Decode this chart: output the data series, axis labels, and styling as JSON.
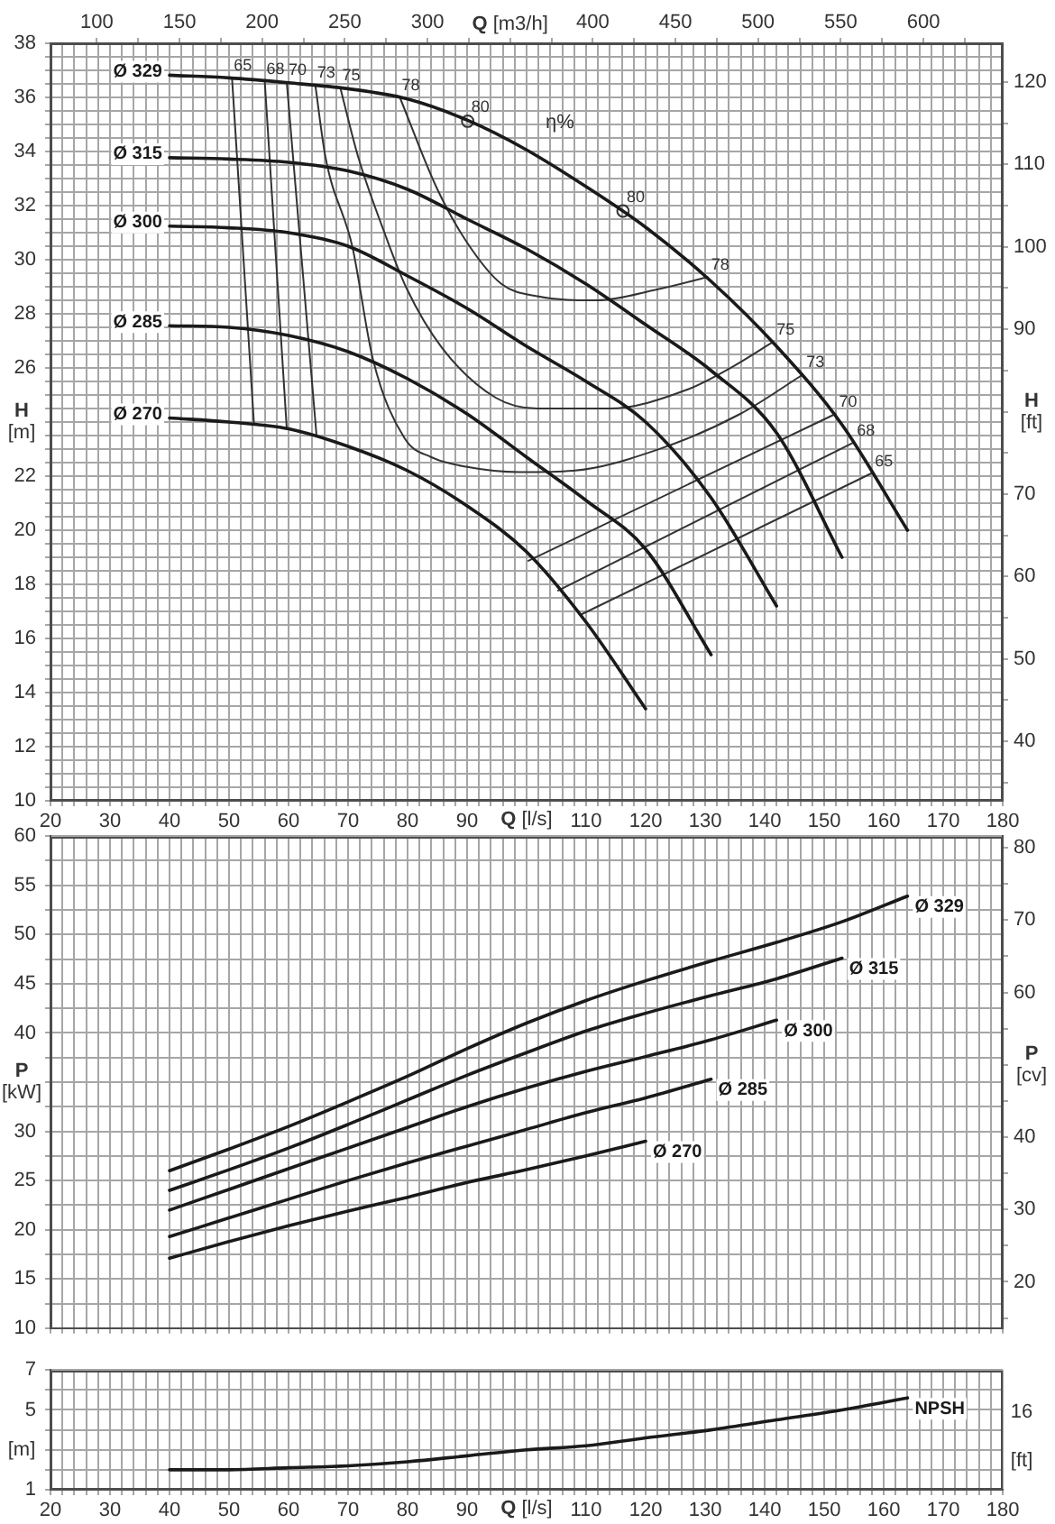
{
  "chart_data": [
    {
      "type": "line",
      "xlabel": "Q [l/s]",
      "x2label": "Q [m3/h]",
      "ylabel": "H [m]",
      "y2label": "H [ft]",
      "grid": true,
      "xlim": [
        20,
        180
      ],
      "ylim": [
        10,
        38
      ],
      "x2lim": [
        72,
        648
      ],
      "y2lim": [
        32.8,
        124.7
      ],
      "xticks": [
        20,
        {
          "value": 22,
          "label": null
        },
        {
          "value": 24,
          "label": null
        },
        {
          "value": 26,
          "label": null
        },
        {
          "value": 28,
          "label": null
        },
        30,
        {
          "value": 32,
          "label": null
        },
        {
          "value": 34,
          "label": null
        },
        {
          "value": 36,
          "label": null
        },
        {
          "value": 38,
          "label": null
        },
        40,
        {
          "value": 42,
          "label": null
        },
        {
          "value": 44,
          "label": null
        },
        {
          "value": 46,
          "label": null
        },
        {
          "value": 48,
          "label": null
        },
        50,
        {
          "value": 52,
          "label": null
        },
        {
          "value": 54,
          "label": null
        },
        {
          "value": 56,
          "label": null
        },
        {
          "value": 58,
          "label": null
        },
        60,
        {
          "value": 62,
          "label": null
        },
        {
          "value": 64,
          "label": null
        },
        {
          "value": 66,
          "label": null
        },
        {
          "value": 68,
          "label": null
        },
        70,
        {
          "value": 72,
          "label": null
        },
        {
          "value": 74,
          "label": null
        },
        {
          "value": 76,
          "label": null
        },
        {
          "value": 78,
          "label": null
        },
        80,
        {
          "value": 82,
          "label": null
        },
        {
          "value": 84,
          "label": null
        },
        {
          "value": 86,
          "label": null
        },
        {
          "value": 88,
          "label": null
        },
        90,
        {
          "value": 92,
          "label": null
        },
        {
          "value": 94,
          "label": null
        },
        {
          "value": 96,
          "label": null
        },
        {
          "value": 98,
          "label": null
        },
        {
          "value": 100,
          "label": null
        },
        {
          "value": 102,
          "label": null
        },
        {
          "value": 104,
          "label": null
        },
        {
          "value": 106,
          "label": null
        },
        {
          "value": 108,
          "label": null
        },
        110,
        {
          "value": 112,
          "label": null
        },
        {
          "value": 114,
          "label": null
        },
        {
          "value": 116,
          "label": null
        },
        {
          "value": 118,
          "label": null
        },
        120,
        {
          "value": 122,
          "label": null
        },
        {
          "value": 124,
          "label": null
        },
        {
          "value": 126,
          "label": null
        },
        {
          "value": 128,
          "label": null
        },
        130,
        {
          "value": 132,
          "label": null
        },
        {
          "value": 134,
          "label": null
        },
        {
          "value": 136,
          "label": null
        },
        {
          "value": 138,
          "label": null
        },
        140,
        {
          "value": 142,
          "label": null
        },
        {
          "value": 144,
          "label": null
        },
        {
          "value": 146,
          "label": null
        },
        {
          "value": 148,
          "label": null
        },
        150,
        {
          "value": 152,
          "label": null
        },
        {
          "value": 154,
          "label": null
        },
        {
          "value": 156,
          "label": null
        },
        {
          "value": 158,
          "label": null
        },
        160,
        {
          "value": 162,
          "label": null
        },
        {
          "value": 164,
          "label": null
        },
        {
          "value": 166,
          "label": null
        },
        {
          "value": 168,
          "label": null
        },
        170,
        {
          "value": 172,
          "label": null
        },
        {
          "value": 174,
          "label": null
        },
        {
          "value": 176,
          "label": null
        },
        {
          "value": 178,
          "label": null
        },
        180
      ],
      "yticks": [
        10,
        {
          "value": 10.5,
          "label": null
        },
        {
          "value": 11,
          "label": null
        },
        {
          "value": 11.5,
          "label": null
        },
        12,
        {
          "value": 12.5,
          "label": null
        },
        {
          "value": 13,
          "label": null
        },
        {
          "value": 13.5,
          "label": null
        },
        14,
        {
          "value": 14.5,
          "label": null
        },
        {
          "value": 15,
          "label": null
        },
        {
          "value": 15.5,
          "label": null
        },
        16,
        {
          "value": 16.5,
          "label": null
        },
        {
          "value": 17,
          "label": null
        },
        {
          "value": 17.5,
          "label": null
        },
        18,
        {
          "value": 18.5,
          "label": null
        },
        {
          "value": 19,
          "label": null
        },
        {
          "value": 19.5,
          "label": null
        },
        20,
        {
          "value": 20.5,
          "label": null
        },
        {
          "value": 21,
          "label": null
        },
        {
          "value": 21.5,
          "label": null
        },
        22,
        {
          "value": 22.5,
          "label": null
        },
        {
          "value": 23,
          "label": null
        },
        {
          "value": 23.5,
          "label": null
        },
        {
          "value": 24,
          "label": null
        },
        {
          "value": 24.5,
          "label": null
        },
        {
          "value": 25,
          "label": null
        },
        {
          "value": 25.5,
          "label": null
        },
        26,
        {
          "value": 26.5,
          "label": null
        },
        {
          "value": 27,
          "label": null
        },
        {
          "value": 27.5,
          "label": null
        },
        28,
        {
          "value": 28.5,
          "label": null
        },
        {
          "value": 29,
          "label": null
        },
        {
          "value": 29.5,
          "label": null
        },
        30,
        {
          "value": 30.5,
          "label": null
        },
        {
          "value": 31,
          "label": null
        },
        {
          "value": 31.5,
          "label": null
        },
        32,
        {
          "value": 32.5,
          "label": null
        },
        {
          "value": 33,
          "label": null
        },
        {
          "value": 33.5,
          "label": null
        },
        34,
        {
          "value": 34.5,
          "label": null
        },
        {
          "value": 35,
          "label": null
        },
        {
          "value": 35.5,
          "label": null
        },
        36,
        {
          "value": 36.5,
          "label": null
        },
        {
          "value": 37,
          "label": null
        },
        {
          "value": 37.5,
          "label": null
        },
        38
      ],
      "x2ticks": [
        100,
        {
          "value": 125,
          "label": null
        },
        150,
        {
          "value": 175,
          "label": null
        },
        200,
        {
          "value": 225,
          "label": null
        },
        250,
        {
          "value": 275,
          "label": null
        },
        300,
        {
          "value": 325,
          "label": null
        },
        {
          "value": 350,
          "label": null
        },
        {
          "value": 375,
          "label": null
        },
        400,
        {
          "value": 425,
          "label": null
        },
        450,
        {
          "value": 475,
          "label": null
        },
        500,
        {
          "value": 525,
          "label": null
        },
        550,
        {
          "value": 575,
          "label": null
        },
        600,
        {
          "value": 625,
          "label": null
        }
      ],
      "y2ticks": [
        {
          "value": 35,
          "label": null
        },
        40,
        {
          "value": 45,
          "label": null
        },
        50,
        {
          "value": 55,
          "label": null
        },
        60,
        {
          "value": 65,
          "label": null
        },
        70,
        {
          "value": 75,
          "label": null
        },
        {
          "value": 80,
          "label": null
        },
        {
          "value": 85,
          "label": null
        },
        90,
        {
          "value": 95,
          "label": null
        },
        100,
        {
          "value": 105,
          "label": null
        },
        110,
        {
          "value": 115,
          "label": null
        },
        120
      ],
      "x": [
        40,
        50,
        60,
        70,
        80,
        90,
        100,
        110,
        120,
        131,
        142,
        153,
        164
      ],
      "series": [
        {
          "name": "Ø 329",
          "color": "#1a1a1a",
          "values": [
            36.82,
            36.72,
            36.54,
            36.32,
            35.94,
            35.16,
            34.06,
            32.7,
            31.2,
            29.2,
            26.8,
            23.9,
            20.0
          ]
        },
        {
          "name": "Ø 315",
          "color": "#1a1a1a",
          "values": [
            33.77,
            33.72,
            33.6,
            33.28,
            32.6,
            31.5,
            30.4,
            29.1,
            27.6,
            25.9,
            23.6,
            19.0,
            null
          ]
        },
        {
          "name": "Ø 300",
          "color": "#1a1a1a",
          "values": [
            31.24,
            31.18,
            31.0,
            30.5,
            29.4,
            28.2,
            26.8,
            25.5,
            24.0,
            21.2,
            17.2,
            null,
            null
          ]
        },
        {
          "name": "Ø 285",
          "color": "#1a1a1a",
          "values": [
            27.56,
            27.5,
            27.2,
            26.6,
            25.6,
            24.3,
            22.7,
            21.1,
            19.3,
            15.4,
            null,
            null,
            null
          ]
        },
        {
          "name": "Ø 270",
          "color": "#1a1a1a",
          "values": [
            24.15,
            24.0,
            23.75,
            23.1,
            22.2,
            20.9,
            19.2,
            16.6,
            13.4,
            null,
            null,
            null,
            null
          ]
        },
        {
          "name": "65",
          "type": "line",
          "color": "#333333",
          "x": [
            50.5,
            54.2,
            null,
            109.3,
            157.9
          ],
          "values": [
            36.72,
            23.9,
            null,
            16.9,
            22.1
          ]
        },
        {
          "name": "68",
          "type": "line",
          "color": "#333333",
          "x": [
            56,
            59.7,
            null,
            105.3,
            154.9
          ],
          "values": [
            36.6,
            23.75,
            null,
            17.77,
            23.24
          ]
        },
        {
          "name": "70",
          "type": "line",
          "color": "#333333",
          "x": [
            59.7,
            64.7,
            null,
            100.3,
            151.9
          ],
          "values": [
            36.55,
            23.5,
            null,
            18.87,
            24.3
          ]
        },
        {
          "name": "73",
          "type": "line",
          "color": "#333333",
          "x": [
            64.5,
            66.2,
            70.7,
            74.2,
            79.5,
            84,
            89.8,
            98.8,
            107.8,
            121.9,
            135.9,
            146.4
          ],
          "values": [
            36.45,
            33.8,
            30.5,
            26.3,
            23.4,
            22.7,
            22.35,
            22.15,
            22.2,
            22.97,
            24.3,
            25.75
          ]
        },
        {
          "name": "75",
          "type": "line",
          "color": "#333333",
          "x": [
            68.7,
            71.7,
            76.2,
            79.8,
            85.8,
            94.8,
            101.8,
            113.8,
            126.9,
            134.9,
            141.4
          ],
          "values": [
            36.35,
            33.8,
            30.95,
            28.96,
            26.74,
            24.9,
            24.5,
            24.5,
            25.19,
            26.08,
            26.96
          ]
        },
        {
          "name": "78",
          "type": "line",
          "color": "#333333",
          "x": [
            78.7,
            84.8,
            89.8,
            95.8,
            101.8,
            111.8,
            121.9,
            130.4
          ],
          "values": [
            36.0,
            32.7,
            30.7,
            29.1,
            28.65,
            28.5,
            28.9,
            29.36
          ]
        },
        {
          "name": "80",
          "type": "scatter",
          "marker": "circle",
          "color": "#333333",
          "x": [
            90.1,
            116.2
          ],
          "values": [
            35.12,
            31.8
          ]
        }
      ],
      "annotations": [
        "η%"
      ]
    },
    {
      "type": "line",
      "ylabel": "P [kW]",
      "y2label": "P [cv]",
      "grid": true,
      "tick_labels": "y",
      "xlim": [
        20,
        180
      ],
      "ylim": [
        10,
        60
      ],
      "y2lim": [
        13.6,
        81.6
      ],
      "xticks": [
        20,
        22,
        24,
        26,
        28,
        30,
        32,
        34,
        36,
        38,
        40,
        42,
        44,
        46,
        48,
        50,
        52,
        54,
        56,
        58,
        60,
        62,
        64,
        66,
        68,
        70,
        72,
        74,
        76,
        78,
        80,
        82,
        84,
        86,
        88,
        90,
        92,
        94,
        96,
        98,
        100,
        102,
        104,
        106,
        108,
        110,
        112,
        114,
        116,
        118,
        120,
        122,
        124,
        126,
        128,
        130,
        132,
        134,
        136,
        138,
        140,
        142,
        144,
        146,
        148,
        150,
        152,
        154,
        156,
        158,
        160,
        162,
        164,
        166,
        168,
        170,
        172,
        174,
        176,
        178,
        180
      ],
      "yticks": [
        10,
        {
          "value": 12.5,
          "label": null
        },
        15,
        {
          "value": 17.5,
          "label": null
        },
        20,
        {
          "value": 22.5,
          "label": null
        },
        25,
        {
          "value": 27.5,
          "label": null
        },
        30,
        {
          "value": 32.5,
          "label": null
        },
        {
          "value": 35,
          "label": null
        },
        {
          "value": 37.5,
          "label": null
        },
        40,
        {
          "value": 42.5,
          "label": null
        },
        45,
        {
          "value": 47.5,
          "label": null
        },
        50,
        {
          "value": 52.5,
          "label": null
        },
        55,
        {
          "value": 57.5,
          "label": null
        },
        60
      ],
      "y2ticks": [
        {
          "value": 15,
          "label": null
        },
        20,
        {
          "value": 25,
          "label": null
        },
        30,
        {
          "value": 35,
          "label": null
        },
        40,
        {
          "value": 45,
          "label": null
        },
        {
          "value": 50,
          "label": null
        },
        {
          "value": 55,
          "label": null
        },
        60,
        {
          "value": 65,
          "label": null
        },
        70,
        {
          "value": 75,
          "label": null
        },
        80
      ],
      "x": [
        40,
        50,
        60,
        70,
        80,
        90,
        100,
        110,
        120,
        131,
        142,
        153,
        164
      ],
      "series": [
        {
          "name": "Ø 329",
          "color": "#1a1a1a",
          "values": [
            26.0,
            28.2,
            30.5,
            33.0,
            35.6,
            38.4,
            41.0,
            43.3,
            45.3,
            47.3,
            49.2,
            51.3,
            53.9
          ]
        },
        {
          "name": "Ø 315",
          "color": "#1a1a1a",
          "values": [
            24.0,
            26.1,
            28.3,
            30.7,
            33.2,
            35.7,
            38.0,
            40.2,
            42.0,
            43.8,
            45.5,
            47.6,
            null
          ]
        },
        {
          "name": "Ø 300",
          "color": "#1a1a1a",
          "values": [
            22.0,
            24.1,
            26.2,
            28.3,
            30.4,
            32.5,
            34.4,
            36.1,
            37.6,
            39.3,
            41.3,
            null,
            null
          ]
        },
        {
          "name": "Ø 285",
          "color": "#1a1a1a",
          "values": [
            19.3,
            21.2,
            23.1,
            25.0,
            26.8,
            28.5,
            30.2,
            31.9,
            33.4,
            35.3,
            null,
            null,
            null
          ]
        },
        {
          "name": "Ø 270",
          "color": "#1a1a1a",
          "values": [
            17.1,
            18.8,
            20.4,
            21.9,
            23.3,
            24.8,
            26.1,
            27.5,
            29.0,
            null,
            null,
            null,
            null
          ]
        }
      ]
    },
    {
      "type": "line",
      "xlabel": "Q [l/s]",
      "ylabel": "[m]",
      "grid": true,
      "xlim": [
        20,
        180
      ],
      "ylim": [
        1,
        7
      ],
      "xticks": [
        20,
        {
          "value": 22,
          "label": null
        },
        {
          "value": 24,
          "label": null
        },
        {
          "value": 26,
          "label": null
        },
        {
          "value": 28,
          "label": null
        },
        30,
        {
          "value": 32,
          "label": null
        },
        {
          "value": 34,
          "label": null
        },
        {
          "value": 36,
          "label": null
        },
        {
          "value": 38,
          "label": null
        },
        40,
        {
          "value": 42,
          "label": null
        },
        {
          "value": 44,
          "label": null
        },
        {
          "value": 46,
          "label": null
        },
        {
          "value": 48,
          "label": null
        },
        50,
        {
          "value": 52,
          "label": null
        },
        {
          "value": 54,
          "label": null
        },
        {
          "value": 56,
          "label": null
        },
        {
          "value": 58,
          "label": null
        },
        60,
        {
          "value": 62,
          "label": null
        },
        {
          "value": 64,
          "label": null
        },
        {
          "value": 66,
          "label": null
        },
        {
          "value": 68,
          "label": null
        },
        70,
        {
          "value": 72,
          "label": null
        },
        {
          "value": 74,
          "label": null
        },
        {
          "value": 76,
          "label": null
        },
        {
          "value": 78,
          "label": null
        },
        80,
        {
          "value": 82,
          "label": null
        },
        {
          "value": 84,
          "label": null
        },
        {
          "value": 86,
          "label": null
        },
        {
          "value": 88,
          "label": null
        },
        90,
        {
          "value": 92,
          "label": null
        },
        {
          "value": 94,
          "label": null
        },
        {
          "value": 96,
          "label": null
        },
        {
          "value": 98,
          "label": null
        },
        {
          "value": 100,
          "label": null
        },
        {
          "value": 102,
          "label": null
        },
        {
          "value": 104,
          "label": null
        },
        {
          "value": 106,
          "label": null
        },
        {
          "value": 108,
          "label": null
        },
        110,
        {
          "value": 112,
          "label": null
        },
        {
          "value": 114,
          "label": null
        },
        {
          "value": 116,
          "label": null
        },
        {
          "value": 118,
          "label": null
        },
        120,
        {
          "value": 122,
          "label": null
        },
        {
          "value": 124,
          "label": null
        },
        {
          "value": 126,
          "label": null
        },
        {
          "value": 128,
          "label": null
        },
        130,
        {
          "value": 132,
          "label": null
        },
        {
          "value": 134,
          "label": null
        },
        {
          "value": 136,
          "label": null
        },
        {
          "value": 138,
          "label": null
        },
        140,
        {
          "value": 142,
          "label": null
        },
        {
          "value": 144,
          "label": null
        },
        {
          "value": 146,
          "label": null
        },
        {
          "value": 148,
          "label": null
        },
        150,
        {
          "value": 152,
          "label": null
        },
        {
          "value": 154,
          "label": null
        },
        {
          "value": 156,
          "label": null
        },
        {
          "value": 158,
          "label": null
        },
        160,
        {
          "value": 162,
          "label": null
        },
        {
          "value": 164,
          "label": null
        },
        {
          "value": 166,
          "label": null
        },
        {
          "value": 168,
          "label": null
        },
        170,
        {
          "value": 172,
          "label": null
        },
        {
          "value": 174,
          "label": null
        },
        {
          "value": 176,
          "label": null
        },
        {
          "value": 178,
          "label": null
        },
        180
      ],
      "yticks": [
        1,
        {
          "value": 2,
          "label": null
        },
        {
          "value": 3,
          "label": null
        },
        {
          "value": 4,
          "label": null
        },
        5,
        {
          "value": 6,
          "label": null
        },
        7
      ],
      "x": [
        40,
        50,
        60,
        70,
        80,
        90,
        100,
        110,
        120,
        131,
        142,
        153,
        164
      ],
      "series": [
        {
          "name": "NPSH",
          "color": "#1a1a1a",
          "values": [
            2.0,
            2.0,
            2.1,
            2.2,
            2.4,
            2.7,
            3.0,
            3.2,
            3.6,
            4.0,
            4.5,
            5.0,
            5.6
          ]
        }
      ],
      "annotations": [
        "16",
        "[ft]"
      ]
    }
  ]
}
